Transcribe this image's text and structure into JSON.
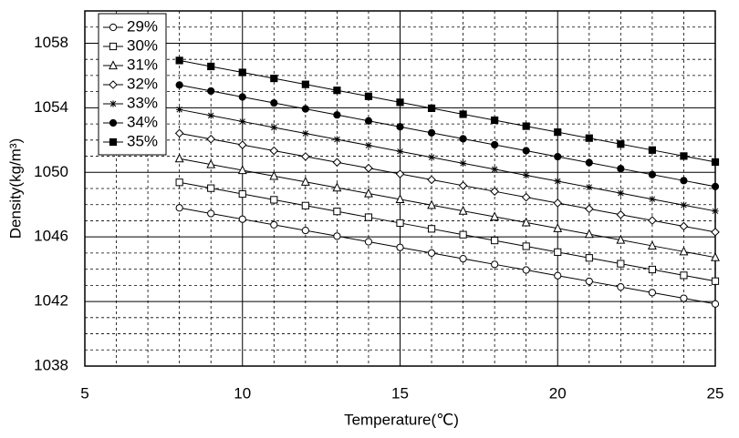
{
  "chart_data": {
    "type": "line",
    "x_label": "Temperature(℃)",
    "y_label": "Density(kg/m³)",
    "x": [
      8,
      9,
      10,
      11,
      12,
      13,
      14,
      15,
      16,
      17,
      18,
      19,
      20,
      21,
      22,
      23,
      24,
      25
    ],
    "series": [
      {
        "name": "29%",
        "color": "#000000",
        "marker": "circle-open",
        "values": [
          1047.8,
          1047.45,
          1047.1,
          1046.75,
          1046.4,
          1046.05,
          1045.7,
          1045.35,
          1045.0,
          1044.65,
          1044.3,
          1043.95,
          1043.6,
          1043.25,
          1042.9,
          1042.55,
          1042.2,
          1041.85
        ]
      },
      {
        "name": "30%",
        "color": "#000000",
        "marker": "square-open",
        "values": [
          1049.38,
          1049.02,
          1048.66,
          1048.3,
          1047.94,
          1047.58,
          1047.22,
          1046.86,
          1046.5,
          1046.14,
          1045.78,
          1045.42,
          1045.06,
          1044.7,
          1044.34,
          1043.98,
          1043.62,
          1043.26
        ]
      },
      {
        "name": "31%",
        "color": "#000000",
        "marker": "triangle-open",
        "values": [
          1050.85,
          1050.49,
          1050.13,
          1049.77,
          1049.41,
          1049.05,
          1048.69,
          1048.33,
          1047.97,
          1047.61,
          1047.25,
          1046.89,
          1046.53,
          1046.17,
          1045.81,
          1045.45,
          1045.09,
          1044.73
        ]
      },
      {
        "name": "32%",
        "color": "#000000",
        "marker": "diamond-open",
        "values": [
          1052.42,
          1052.06,
          1051.7,
          1051.34,
          1050.98,
          1050.62,
          1050.26,
          1049.9,
          1049.54,
          1049.18,
          1048.82,
          1048.46,
          1048.1,
          1047.74,
          1047.38,
          1047.02,
          1046.66,
          1046.3
        ]
      },
      {
        "name": "33%",
        "color": "#000000",
        "marker": "asterisk",
        "values": [
          1053.89,
          1053.52,
          1053.15,
          1052.78,
          1052.41,
          1052.04,
          1051.67,
          1051.3,
          1050.93,
          1050.56,
          1050.19,
          1049.82,
          1049.45,
          1049.08,
          1048.71,
          1048.34,
          1047.97,
          1047.6
        ]
      },
      {
        "name": "34%",
        "color": "#000000",
        "marker": "circle-filled",
        "values": [
          1055.41,
          1055.04,
          1054.67,
          1054.3,
          1053.93,
          1053.56,
          1053.19,
          1052.82,
          1052.45,
          1052.08,
          1051.71,
          1051.34,
          1050.97,
          1050.6,
          1050.23,
          1049.86,
          1049.49,
          1049.12
        ]
      },
      {
        "name": "35%",
        "color": "#000000",
        "marker": "square-filled",
        "values": [
          1056.93,
          1056.56,
          1056.19,
          1055.82,
          1055.45,
          1055.08,
          1054.71,
          1054.34,
          1053.97,
          1053.6,
          1053.23,
          1052.86,
          1052.49,
          1052.12,
          1051.75,
          1051.38,
          1051.01,
          1050.64
        ]
      }
    ],
    "xlim": [
      5,
      25
    ],
    "xticks": [
      5,
      10,
      15,
      20,
      25
    ],
    "ylim": [
      1038,
      1060
    ],
    "yticks": [
      1038,
      1042,
      1046,
      1050,
      1054,
      1058
    ],
    "grid": true,
    "minor_grid": true,
    "legend": "upper left"
  }
}
